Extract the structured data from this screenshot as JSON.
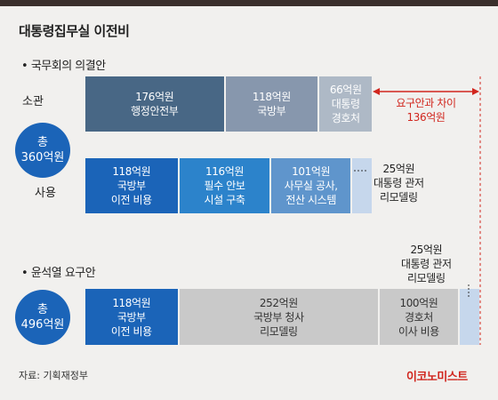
{
  "title": "대통령집무실 이전비",
  "source": "자료: 기획재정부",
  "brand": "이코노미스트",
  "colors": {
    "navy": "#486785",
    "slate": "#8797ad",
    "grayblue": "#aeb9c6",
    "blue": "#1b64b8",
    "mid_blue": "#2c83cb",
    "sky_blue": "#5f95cc",
    "pale_blue": "#c6d7ec",
    "gray": "#c9c9c9",
    "accent_red": "#d1261e"
  },
  "chart_data": {
    "type": "bar",
    "stacked": true,
    "orientation": "horizontal",
    "unit": "억원",
    "groups": [
      {
        "label": "국무회의 의결안",
        "total_label": [
          "총",
          "360억원"
        ],
        "rows": [
          {
            "label": "소관",
            "segments": [
              {
                "value": 176,
                "lines": [
                  "176억원",
                  "행정안전부"
                ],
                "color": "#486785",
                "text": "light"
              },
              {
                "value": 118,
                "lines": [
                  "118억원",
                  "국방부"
                ],
                "color": "#8797ad",
                "text": "light"
              },
              {
                "value": 66,
                "lines": [
                  "66억원",
                  "대통령",
                  "경호처"
                ],
                "color": "#aeb9c6",
                "text": "light"
              }
            ]
          },
          {
            "label": "사용",
            "segments": [
              {
                "value": 118,
                "lines": [
                  "118억원",
                  "국방부",
                  "이전 비용"
                ],
                "color": "#1b64b8",
                "text": "light"
              },
              {
                "value": 116,
                "lines": [
                  "116억원",
                  "필수 안보",
                  "시설 구축"
                ],
                "color": "#2c83cb",
                "text": "light"
              },
              {
                "value": 101,
                "lines": [
                  "101억원",
                  "사무실 공사,",
                  "전산 시스템"
                ],
                "color": "#5f95cc",
                "text": "light"
              },
              {
                "value": 25,
                "lines": [],
                "color": "#c6d7ec",
                "text": "dark"
              }
            ],
            "callout": [
              "25억원",
              "대통령 관저",
              "리모델링"
            ]
          }
        ],
        "difference": [
          "요구안과 차이",
          "136억원"
        ]
      },
      {
        "label": "윤석열 요구안",
        "total_label": [
          "총",
          "496억원"
        ],
        "rows": [
          {
            "label": "",
            "segments": [
              {
                "value": 118,
                "lines": [
                  "118억원",
                  "국방부",
                  "이전 비용"
                ],
                "color": "#1b64b8",
                "text": "light"
              },
              {
                "value": 252,
                "lines": [
                  "252억원",
                  "국방부 청사",
                  "리모델링"
                ],
                "color": "#c9c9c9",
                "text": "dark"
              },
              {
                "value": 100,
                "lines": [
                  "100억원",
                  "경호처",
                  "이사 비용"
                ],
                "color": "#c9c9c9",
                "text": "dark"
              },
              {
                "value": 25,
                "lines": [],
                "color": "#c6d7ec",
                "text": "dark"
              }
            ],
            "callout": [
              "25억원",
              "대통령 관저",
              "리모델링"
            ]
          }
        ]
      }
    ]
  }
}
